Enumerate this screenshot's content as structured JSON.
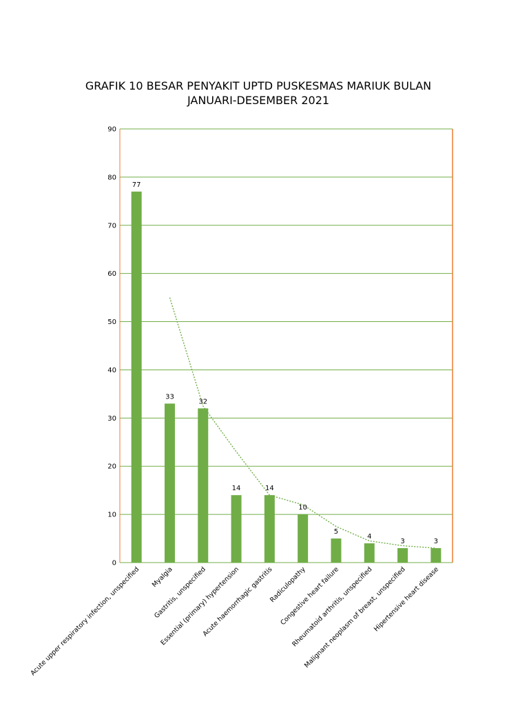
{
  "chart_data": {
    "type": "bar",
    "title_lines": [
      "GRAFIK 10 BESAR PENYAKIT UPTD PUSKESMAS MARIUK BULAN",
      "JANUARI-DESEMBER 2021"
    ],
    "categories": [
      "Acute upper respiratory infection, unspecified",
      "Myalgia",
      "Gastritis, unspecified",
      "Essential (primary) hypertension",
      "Acute haemorrhagic gastritis",
      "Radiculopathy",
      "Congestive heart failure",
      "Rheumatoid arthritis, unspecified",
      "Malignant neoplasm of breast, unspecified",
      "Hipertensive heart disease"
    ],
    "values": [
      77,
      33,
      32,
      14,
      14,
      10,
      5,
      4,
      3,
      3
    ],
    "ylim": [
      0,
      90
    ],
    "yticks": [
      0,
      10,
      20,
      30,
      40,
      50,
      60,
      70,
      80,
      90
    ],
    "grid": true,
    "trendline": {
      "type": "moving-average",
      "period": 2,
      "values": [
        55,
        32.5,
        23,
        14,
        12,
        7.5,
        4.5,
        3.5,
        3
      ]
    },
    "colors": {
      "bar": "#70ad47",
      "grid": "#70ad47",
      "axis_frame": "#ed7d31",
      "trendline": "#70ad47"
    }
  }
}
